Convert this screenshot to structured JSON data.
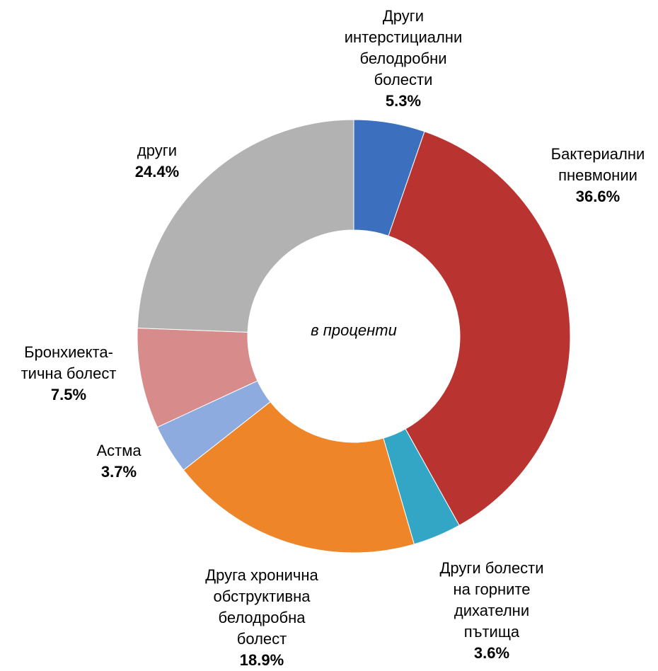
{
  "chart_data": {
    "type": "donut",
    "center_label": "в проценти",
    "categories": [
      "Други\nинтерстициални\nбелодробни\nболести",
      "Бактериални\nпневмонии",
      "Други болести\nна горните\nдихателни\nпътища",
      "Друга хронична\nобструктивна\nбелодробна\nболест",
      "Астма",
      "Бронхиекта-\nтична болест",
      "други"
    ],
    "values": [
      5.3,
      36.6,
      3.6,
      18.9,
      3.7,
      7.5,
      24.4
    ],
    "value_labels": [
      "5.3%",
      "36.6%",
      "3.6%",
      "18.9%",
      "3.7%",
      "7.5%",
      "24.4%"
    ],
    "colors": [
      "#3d6fbf",
      "#b93331",
      "#33a6c6",
      "#ee8629",
      "#8eabdf",
      "#d88b8b",
      "#b2b2b2"
    ]
  }
}
